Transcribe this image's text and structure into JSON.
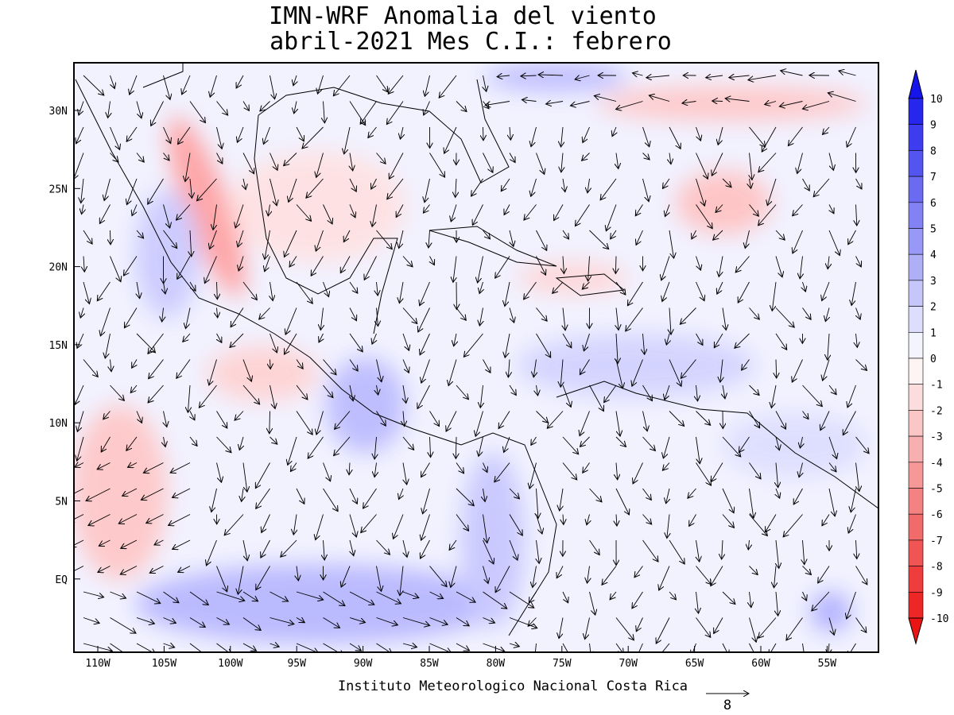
{
  "header": {
    "title_line1": "IMN-WRF Anomalia del viento",
    "title_line2": "abril-2021 Mes C.I.: febrero"
  },
  "map": {
    "lon_labels": [
      "110W",
      "105W",
      "100W",
      "95W",
      "90W",
      "85W",
      "80W",
      "75W",
      "70W",
      "65W",
      "60W",
      "55W"
    ],
    "lat_labels": [
      "30N",
      "25N",
      "20N",
      "15N",
      "10N",
      "5N",
      "EQ"
    ]
  },
  "colorbar": {
    "levels": [
      10,
      9,
      8,
      7,
      6,
      5,
      4,
      3,
      2,
      1,
      0,
      -1,
      -2,
      -3,
      -4,
      -5,
      -6,
      -7,
      -8,
      -9,
      -10
    ]
  },
  "footer": {
    "credit": "Instituto Meteorologico Nacional Costa Rica",
    "reference_vector": "8"
  }
}
